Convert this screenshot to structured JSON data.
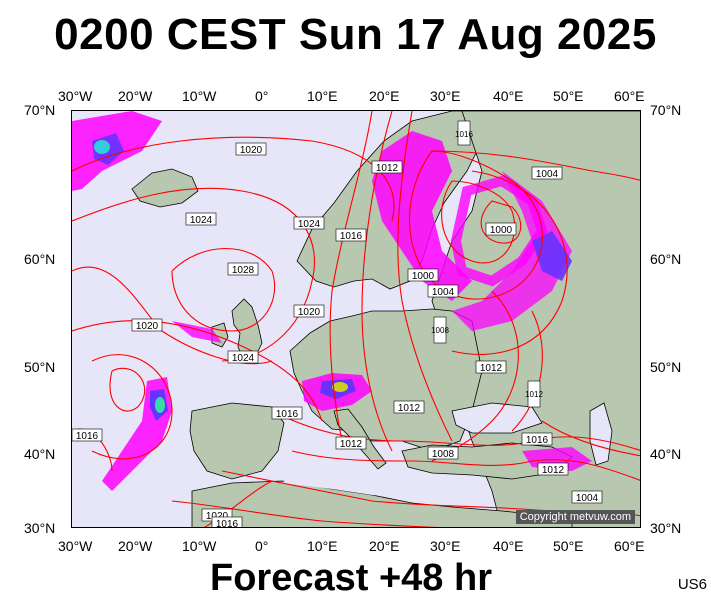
{
  "title": "0200 CEST Sun 17 Aug 2025",
  "subtitle": "Forecast +48 hr",
  "code": "US6",
  "copyright": "Copyright metvuw.com",
  "axes": {
    "top_lon": [
      "30°W",
      "20°W",
      "10°W",
      "0°",
      "10°E",
      "20°E",
      "30°E",
      "40°E",
      "50°E",
      "60°E"
    ],
    "bottom_lon": [
      "30°W",
      "20°W",
      "10°W",
      "0°",
      "10°E",
      "20°E",
      "30°E",
      "40°E",
      "50°E",
      "60°E"
    ],
    "left_lat": [
      "70°N",
      "60°N",
      "50°N",
      "40°N",
      "30°N"
    ],
    "right_lat": [
      "70°N",
      "60°N",
      "50°N",
      "40°N",
      "30°N"
    ]
  },
  "isobar_labels": [
    "1020",
    "1024",
    "1028",
    "1020",
    "1024",
    "1020",
    "1016",
    "1024",
    "1016",
    "1012",
    "1004",
    "1000",
    "1000",
    "1004",
    "1008",
    "1012",
    "1012",
    "1012",
    "1016",
    "1012",
    "1008",
    "1016",
    "1012",
    "1004",
    "1016",
    "1020",
    "1016"
  ],
  "colors": {
    "isobar": "#ff0000",
    "sea": "#e6e6f8",
    "land": "#b8c8b0",
    "rain": "#ff00ff"
  }
}
